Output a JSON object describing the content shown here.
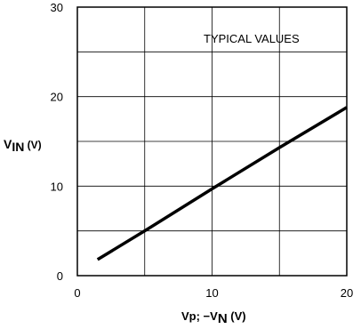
{
  "chart_data": {
    "type": "line",
    "annotation": "TYPICAL VALUES",
    "ylabel_main": "V",
    "ylabel_sub": "IN",
    "ylabel_unit": " (V)",
    "xlabel_main": "Vp; −V",
    "xlabel_sub": "N",
    "xlabel_unit": " (V)",
    "xlim": [
      0,
      20
    ],
    "ylim": [
      0,
      30
    ],
    "x_ticks": [
      "0",
      "10",
      "20"
    ],
    "y_ticks": [
      "0",
      "10",
      "20",
      "30"
    ],
    "grid": true,
    "series": [
      {
        "x": [
          1.5,
          5,
          10,
          15,
          20
        ],
        "values": [
          1.8,
          5,
          9.7,
          14.3,
          18.8
        ]
      }
    ]
  }
}
